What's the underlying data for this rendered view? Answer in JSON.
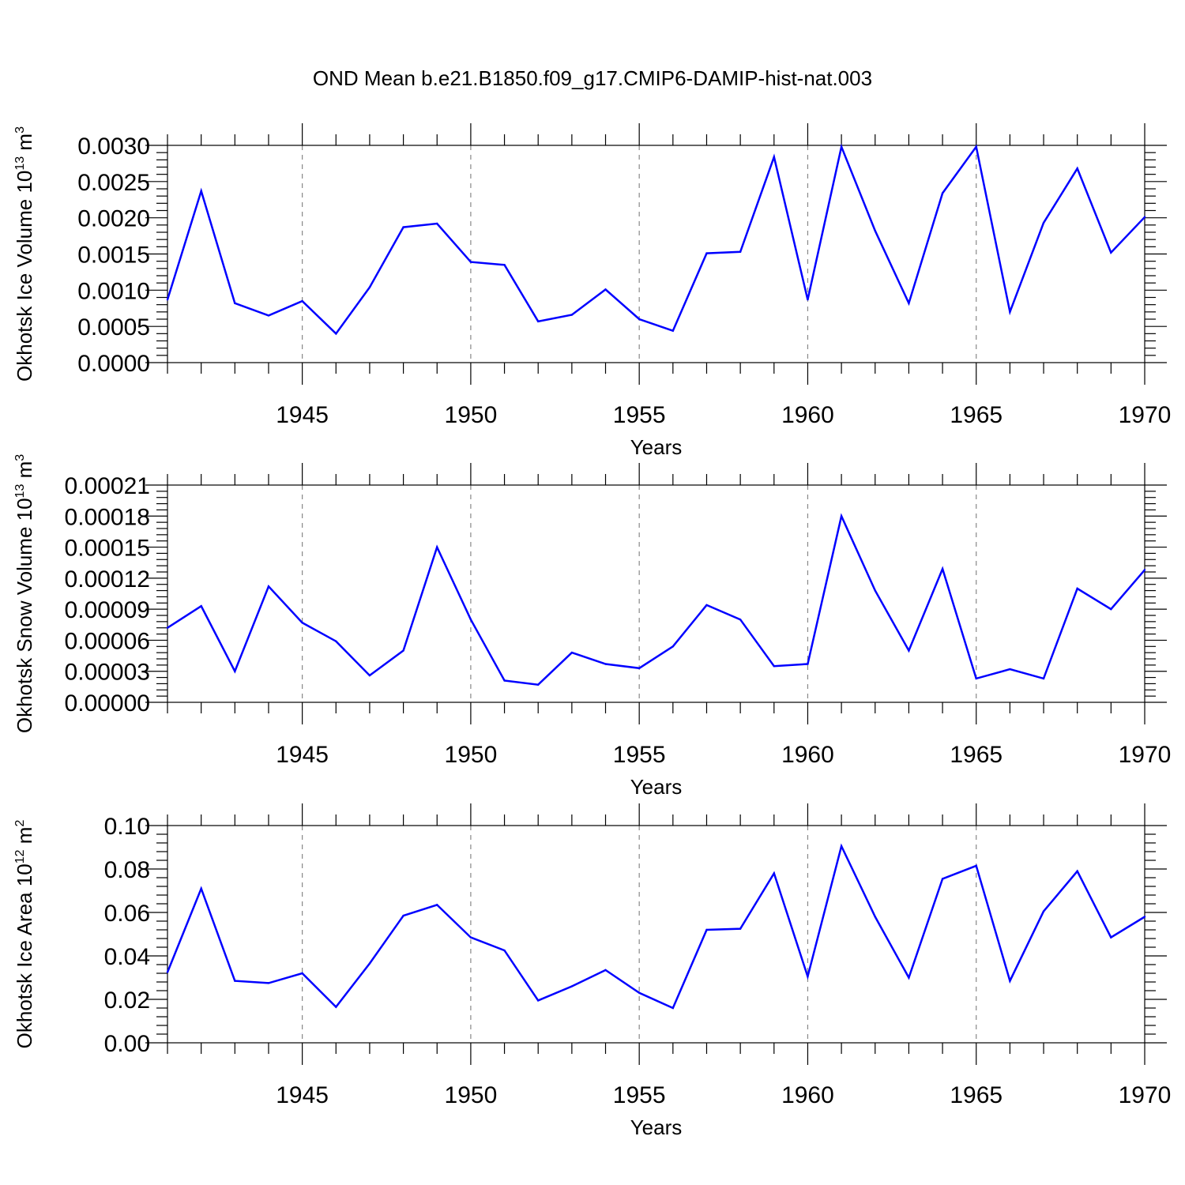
{
  "title": "OND Mean b.e21.B1850.f09_g17.CMIP6-DAMIP-hist-nat.003",
  "colors": {
    "series": "#0000ff",
    "axis": "#000000",
    "grid": "#888888"
  },
  "chart_data": [
    {
      "type": "line",
      "name": "ice-volume",
      "ylabel": "Okhotsk Ice Volume 10",
      "ylabel_exp": "13",
      "ylabel_unit": " m",
      "ylabel_unit_exp": "3",
      "xlabel": "Years",
      "xlim": [
        1941,
        1970
      ],
      "ylim": [
        0,
        0.003
      ],
      "xticks": [
        1945,
        1950,
        1955,
        1960,
        1965,
        1970
      ],
      "yticks": [
        0,
        0.0005,
        0.001,
        0.0015,
        0.002,
        0.0025,
        0.003
      ],
      "yticklabels": [
        "0.0000",
        "0.0005",
        "0.0010",
        "0.0015",
        "0.0020",
        "0.0025",
        "0.0030"
      ],
      "grid": "vertical dashed at major x ticks",
      "x": [
        1941,
        1942,
        1943,
        1944,
        1945,
        1946,
        1947,
        1948,
        1949,
        1950,
        1951,
        1952,
        1953,
        1954,
        1955,
        1956,
        1957,
        1958,
        1959,
        1960,
        1961,
        1962,
        1963,
        1964,
        1965,
        1966,
        1967,
        1968,
        1969,
        1970
      ],
      "values": [
        0.00087,
        0.00237,
        0.00082,
        0.00065,
        0.00085,
        0.0004,
        0.00104,
        0.00187,
        0.00192,
        0.00139,
        0.00135,
        0.00057,
        0.00066,
        0.00101,
        0.0006,
        0.00044,
        0.00151,
        0.00153,
        0.00284,
        0.00087,
        0.00298,
        0.00182,
        0.00082,
        0.00234,
        0.00298,
        0.0007,
        0.00193,
        0.00268,
        0.00152,
        0.00201
      ]
    },
    {
      "type": "line",
      "name": "snow-volume",
      "ylabel": "Okhotsk Snow Volume 10",
      "ylabel_exp": "13",
      "ylabel_unit": " m",
      "ylabel_unit_exp": "3",
      "xlabel": "Years",
      "xlim": [
        1941,
        1970
      ],
      "ylim": [
        0,
        0.00021
      ],
      "xticks": [
        1945,
        1950,
        1955,
        1960,
        1965,
        1970
      ],
      "yticks": [
        0,
        3e-05,
        6e-05,
        9e-05,
        0.00012,
        0.00015,
        0.00018,
        0.00021
      ],
      "yticklabels": [
        "0.00000",
        "0.00003",
        "0.00006",
        "0.00009",
        "0.00012",
        "0.00015",
        "0.00018",
        "0.00021"
      ],
      "grid": "vertical dashed at major x ticks",
      "x": [
        1941,
        1942,
        1943,
        1944,
        1945,
        1946,
        1947,
        1948,
        1949,
        1950,
        1951,
        1952,
        1953,
        1954,
        1955,
        1956,
        1957,
        1958,
        1959,
        1960,
        1961,
        1962,
        1963,
        1964,
        1965,
        1966,
        1967,
        1968,
        1969,
        1970
      ],
      "values": [
        7.2e-05,
        9.3e-05,
        3e-05,
        0.000112,
        7.7e-05,
        5.9e-05,
        2.6e-05,
        5e-05,
        0.00015,
        8e-05,
        2.1e-05,
        1.7e-05,
        4.8e-05,
        3.7e-05,
        3.3e-05,
        5.4e-05,
        9.4e-05,
        8e-05,
        3.5e-05,
        3.7e-05,
        0.00018,
        0.000108,
        5e-05,
        0.000129,
        2.3e-05,
        3.2e-05,
        2.3e-05,
        0.00011,
        9e-05,
        0.000128
      ]
    },
    {
      "type": "line",
      "name": "ice-area",
      "ylabel": "Okhotsk Ice Area 10",
      "ylabel_exp": "12",
      "ylabel_unit": " m",
      "ylabel_unit_exp": "2",
      "xlabel": "Years",
      "xlim": [
        1941,
        1970
      ],
      "ylim": [
        0,
        0.1
      ],
      "xticks": [
        1945,
        1950,
        1955,
        1960,
        1965,
        1970
      ],
      "yticks": [
        0,
        0.02,
        0.04,
        0.06,
        0.08,
        0.1
      ],
      "yticklabels": [
        "0.00",
        "0.02",
        "0.04",
        "0.06",
        "0.08",
        "0.10"
      ],
      "grid": "vertical dashed at major x ticks",
      "x": [
        1941,
        1942,
        1943,
        1944,
        1945,
        1946,
        1947,
        1948,
        1949,
        1950,
        1951,
        1952,
        1953,
        1954,
        1955,
        1956,
        1957,
        1958,
        1959,
        1960,
        1961,
        1962,
        1963,
        1964,
        1965,
        1966,
        1967,
        1968,
        1969,
        1970
      ],
      "values": [
        0.0325,
        0.071,
        0.0285,
        0.0275,
        0.032,
        0.0165,
        0.0365,
        0.0585,
        0.0635,
        0.0485,
        0.0425,
        0.0195,
        0.026,
        0.0335,
        0.023,
        0.016,
        0.052,
        0.0525,
        0.078,
        0.0305,
        0.0905,
        0.058,
        0.03,
        0.0755,
        0.0815,
        0.0285,
        0.0605,
        0.079,
        0.0485,
        0.058
      ]
    }
  ]
}
